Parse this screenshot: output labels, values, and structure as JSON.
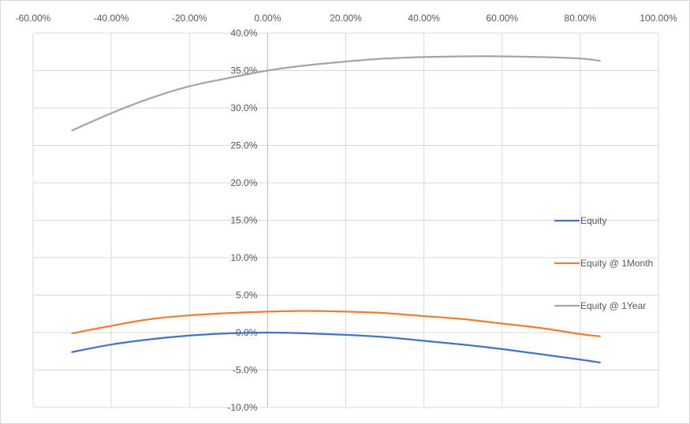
{
  "chart_data": {
    "type": "line",
    "title": "",
    "xlabel": "",
    "ylabel": "",
    "xlim": [
      -60,
      100
    ],
    "ylim": [
      -10,
      40
    ],
    "x_ticks": [
      -60,
      -40,
      -20,
      0,
      20,
      40,
      60,
      80,
      100
    ],
    "y_ticks": [
      -10,
      -5,
      0,
      5,
      10,
      15,
      20,
      25,
      30,
      35,
      40
    ],
    "x_tick_labels": [
      "-60.00%",
      "-40.00%",
      "-20.00%",
      "0.00%",
      "20.00%",
      "40.00%",
      "60.00%",
      "80.00%",
      "100.00%"
    ],
    "y_tick_labels": [
      "-10.0%",
      "-5.0%",
      "0.0%",
      "5.0%",
      "10.0%",
      "15.0%",
      "20.0%",
      "25.0%",
      "30.0%",
      "35.0%",
      "40.0%"
    ],
    "x_axis_position": "top",
    "y_axis_crosses_at_x": 0,
    "grid": true,
    "legend_position": "right",
    "x": [
      -50,
      -40,
      -30,
      -20,
      -10,
      0,
      10,
      20,
      30,
      40,
      50,
      60,
      70,
      80,
      85
    ],
    "series": [
      {
        "name": "Equity",
        "color": "#4472c4",
        "values": [
          -2.6,
          -1.6,
          -0.9,
          -0.4,
          -0.1,
          0.0,
          -0.1,
          -0.3,
          -0.6,
          -1.1,
          -1.6,
          -2.2,
          -2.9,
          -3.6,
          -4.0
        ]
      },
      {
        "name": "Equity @ 1Month",
        "color": "#ed7d31",
        "values": [
          -0.1,
          0.9,
          1.8,
          2.3,
          2.6,
          2.8,
          2.9,
          2.8,
          2.6,
          2.2,
          1.8,
          1.2,
          0.6,
          -0.2,
          -0.5
        ]
      },
      {
        "name": "Equity @ 1Year",
        "color": "#a5a5a5",
        "values": [
          27.0,
          29.3,
          31.3,
          32.9,
          34.0,
          35.0,
          35.7,
          36.2,
          36.6,
          36.8,
          36.9,
          36.9,
          36.8,
          36.6,
          36.3
        ]
      }
    ]
  }
}
